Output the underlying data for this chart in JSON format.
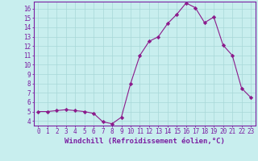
{
  "x": [
    0,
    1,
    2,
    3,
    4,
    5,
    6,
    7,
    8,
    9,
    10,
    11,
    12,
    13,
    14,
    15,
    16,
    17,
    18,
    19,
    20,
    21,
    22,
    23
  ],
  "y": [
    5.0,
    5.0,
    5.1,
    5.2,
    5.1,
    5.0,
    4.8,
    3.9,
    3.7,
    4.4,
    8.0,
    11.0,
    12.5,
    13.0,
    14.4,
    15.4,
    16.6,
    16.1,
    14.5,
    15.1,
    12.1,
    11.0,
    7.5,
    6.5
  ],
  "line_color": "#8B1A8B",
  "marker": "D",
  "marker_size": 2.2,
  "bg_color": "#C8EEEE",
  "grid_color": "#A8D8D8",
  "xlabel": "Windchill (Refroidissement éolien,°C)",
  "xlim": [
    -0.5,
    23.5
  ],
  "ylim": [
    3.5,
    16.75
  ],
  "yticks": [
    4,
    5,
    6,
    7,
    8,
    9,
    10,
    11,
    12,
    13,
    14,
    15,
    16
  ],
  "xtick_labels": [
    "0",
    "1",
    "2",
    "3",
    "4",
    "5",
    "6",
    "7",
    "8",
    "9",
    "10",
    "11",
    "12",
    "13",
    "14",
    "15",
    "16",
    "17",
    "18",
    "19",
    "20",
    "21",
    "22",
    "23"
  ],
  "tick_color": "#7B1FA2",
  "label_color": "#7B1FA2",
  "axis_color": "#7B1FA2",
  "tick_fontsize": 5.5,
  "xlabel_fontsize": 6.5
}
